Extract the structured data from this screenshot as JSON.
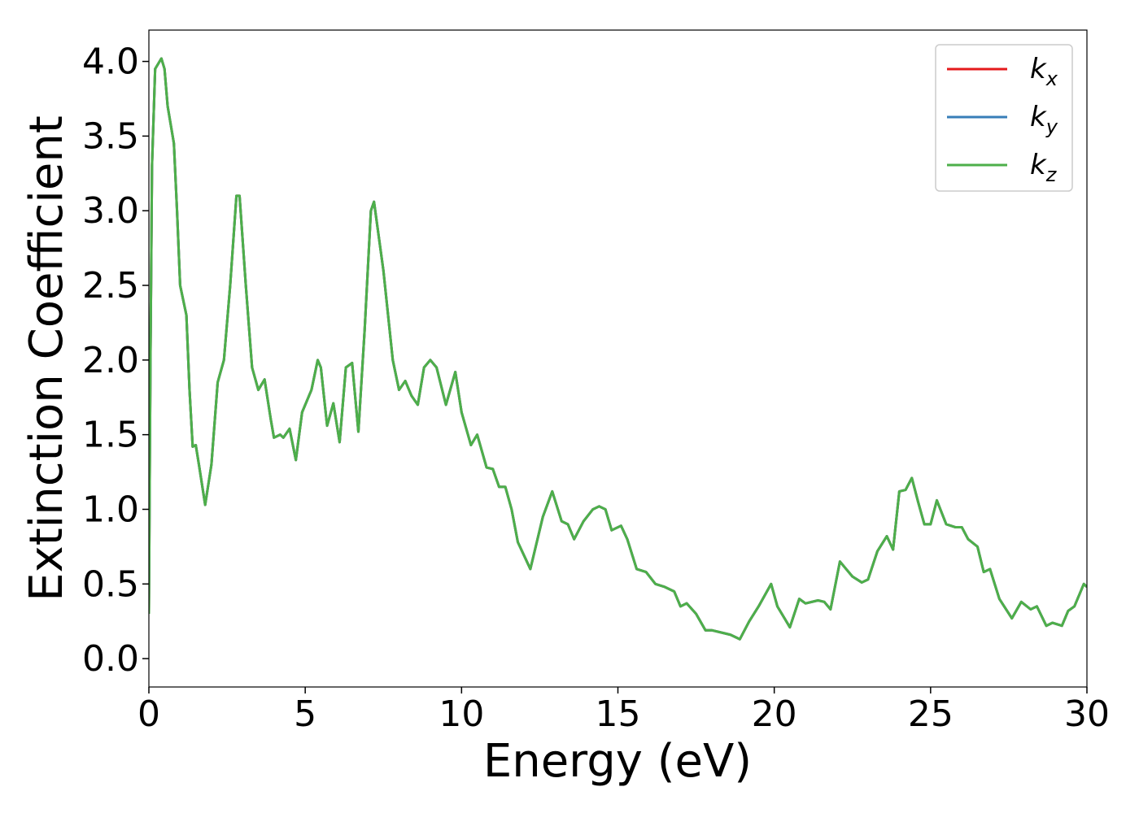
{
  "chart_data": {
    "type": "line",
    "xlabel": "Energy (eV)",
    "ylabel": "Extinction Coefficient",
    "xlim": [
      0,
      30
    ],
    "xticks": [
      0,
      5,
      10,
      15,
      20,
      25,
      30
    ],
    "ylim": [
      -0.19,
      4.21
    ],
    "yticks": [
      {
        "value": 0,
        "label": "0.0"
      },
      0.5,
      {
        "value": 1,
        "label": "1.0"
      },
      1.5,
      {
        "value": 2,
        "label": "2.0"
      },
      2.5,
      {
        "value": 3,
        "label": "3.0"
      },
      3.5,
      {
        "value": 4,
        "label": "4.0"
      }
    ],
    "legend": "upper right",
    "grid": false,
    "x": [
      0,
      0.05,
      0.1,
      0.2,
      0.4,
      0.5,
      0.6,
      0.8,
      0.9,
      1.0,
      1.2,
      1.3,
      1.4,
      1.5,
      1.6,
      1.8,
      2.0,
      2.2,
      2.4,
      2.6,
      2.8,
      2.9,
      3.1,
      3.3,
      3.5,
      3.7,
      3.9,
      4.0,
      4.2,
      4.3,
      4.5,
      4.7,
      4.9,
      5.2,
      5.4,
      5.5,
      5.7,
      5.9,
      6.1,
      6.3,
      6.5,
      6.7,
      6.9,
      7.1,
      7.2,
      7.5,
      7.8,
      8.0,
      8.2,
      8.4,
      8.6,
      8.8,
      9.0,
      9.2,
      9.5,
      9.8,
      10.0,
      10.3,
      10.5,
      10.8,
      11.0,
      11.2,
      11.4,
      11.6,
      11.8,
      12.2,
      12.6,
      12.9,
      13.2,
      13.4,
      13.6,
      13.9,
      14.2,
      14.4,
      14.6,
      14.8,
      15.1,
      15.3,
      15.6,
      15.9,
      16.2,
      16.5,
      16.8,
      17.0,
      17.2,
      17.5,
      17.8,
      18.0,
      18.4,
      18.6,
      18.9,
      19.2,
      19.5,
      19.9,
      20.1,
      20.5,
      20.8,
      21.0,
      21.4,
      21.6,
      21.8,
      22.1,
      22.3,
      22.5,
      22.8,
      23.0,
      23.3,
      23.6,
      23.8,
      24.0,
      24.2,
      24.4,
      24.6,
      24.8,
      25.0,
      25.2,
      25.5,
      25.8,
      26.0,
      26.2,
      26.5,
      26.7,
      26.9,
      27.2,
      27.6,
      27.9,
      28.2,
      28.4,
      28.7,
      28.9,
      29.2,
      29.4,
      29.6,
      29.9,
      30.0
    ],
    "series": [
      {
        "name": "kx",
        "color": "#e41a1c",
        "values": [
          0.3,
          2.0,
          3.3,
          3.95,
          4.02,
          3.95,
          3.7,
          3.45,
          3.0,
          2.5,
          2.3,
          1.8,
          1.42,
          1.43,
          1.3,
          1.03,
          1.3,
          1.85,
          2.0,
          2.5,
          3.1,
          3.1,
          2.5,
          1.95,
          1.8,
          1.87,
          1.6,
          1.48,
          1.5,
          1.48,
          1.54,
          1.33,
          1.65,
          1.8,
          2.0,
          1.95,
          1.56,
          1.71,
          1.45,
          1.95,
          1.98,
          1.52,
          2.2,
          3.0,
          3.06,
          2.6,
          2.0,
          1.8,
          1.86,
          1.76,
          1.7,
          1.95,
          2.0,
          1.95,
          1.7,
          1.92,
          1.65,
          1.43,
          1.5,
          1.28,
          1.27,
          1.15,
          1.15,
          1.0,
          0.78,
          0.6,
          0.95,
          1.12,
          0.92,
          0.9,
          0.8,
          0.92,
          1.0,
          1.02,
          1.0,
          0.86,
          0.89,
          0.8,
          0.6,
          0.58,
          0.5,
          0.48,
          0.45,
          0.35,
          0.37,
          0.3,
          0.19,
          0.19,
          0.17,
          0.16,
          0.13,
          0.25,
          0.35,
          0.5,
          0.35,
          0.21,
          0.4,
          0.37,
          0.39,
          0.38,
          0.33,
          0.65,
          0.6,
          0.55,
          0.51,
          0.53,
          0.72,
          0.82,
          0.73,
          1.12,
          1.13,
          1.21,
          1.05,
          0.9,
          0.9,
          1.06,
          0.9,
          0.88,
          0.88,
          0.8,
          0.75,
          0.58,
          0.6,
          0.4,
          0.27,
          0.38,
          0.33,
          0.35,
          0.22,
          0.24,
          0.22,
          0.32,
          0.35,
          0.5,
          0.48
        ]
      },
      {
        "name": "ky",
        "color": "#377eb8",
        "values": [
          0.3,
          2.0,
          3.3,
          3.95,
          4.02,
          3.95,
          3.7,
          3.45,
          3.0,
          2.5,
          2.3,
          1.8,
          1.42,
          1.43,
          1.3,
          1.03,
          1.3,
          1.85,
          2.0,
          2.5,
          3.1,
          3.1,
          2.5,
          1.95,
          1.8,
          1.87,
          1.6,
          1.48,
          1.5,
          1.48,
          1.54,
          1.33,
          1.65,
          1.8,
          2.0,
          1.95,
          1.56,
          1.71,
          1.45,
          1.95,
          1.98,
          1.52,
          2.2,
          3.0,
          3.06,
          2.6,
          2.0,
          1.8,
          1.86,
          1.76,
          1.7,
          1.95,
          2.0,
          1.95,
          1.7,
          1.92,
          1.65,
          1.43,
          1.5,
          1.28,
          1.27,
          1.15,
          1.15,
          1.0,
          0.78,
          0.6,
          0.95,
          1.12,
          0.92,
          0.9,
          0.8,
          0.92,
          1.0,
          1.02,
          1.0,
          0.86,
          0.89,
          0.8,
          0.6,
          0.58,
          0.5,
          0.48,
          0.45,
          0.35,
          0.37,
          0.3,
          0.19,
          0.19,
          0.17,
          0.16,
          0.13,
          0.25,
          0.35,
          0.5,
          0.35,
          0.21,
          0.4,
          0.37,
          0.39,
          0.38,
          0.33,
          0.65,
          0.6,
          0.55,
          0.51,
          0.53,
          0.72,
          0.82,
          0.73,
          1.12,
          1.13,
          1.21,
          1.05,
          0.9,
          0.9,
          1.06,
          0.9,
          0.88,
          0.88,
          0.8,
          0.75,
          0.58,
          0.6,
          0.4,
          0.27,
          0.38,
          0.33,
          0.35,
          0.22,
          0.24,
          0.22,
          0.32,
          0.35,
          0.5,
          0.48
        ]
      },
      {
        "name": "kz",
        "color": "#4daf4a",
        "values": [
          0.3,
          2.0,
          3.3,
          3.95,
          4.02,
          3.95,
          3.7,
          3.45,
          3.0,
          2.5,
          2.3,
          1.8,
          1.42,
          1.43,
          1.3,
          1.03,
          1.3,
          1.85,
          2.0,
          2.5,
          3.1,
          3.1,
          2.5,
          1.95,
          1.8,
          1.87,
          1.6,
          1.48,
          1.5,
          1.48,
          1.54,
          1.33,
          1.65,
          1.8,
          2.0,
          1.95,
          1.56,
          1.71,
          1.45,
          1.95,
          1.98,
          1.52,
          2.2,
          3.0,
          3.06,
          2.6,
          2.0,
          1.8,
          1.86,
          1.76,
          1.7,
          1.95,
          2.0,
          1.95,
          1.7,
          1.92,
          1.65,
          1.43,
          1.5,
          1.28,
          1.27,
          1.15,
          1.15,
          1.0,
          0.78,
          0.6,
          0.95,
          1.12,
          0.92,
          0.9,
          0.8,
          0.92,
          1.0,
          1.02,
          1.0,
          0.86,
          0.89,
          0.8,
          0.6,
          0.58,
          0.5,
          0.48,
          0.45,
          0.35,
          0.37,
          0.3,
          0.19,
          0.19,
          0.17,
          0.16,
          0.13,
          0.25,
          0.35,
          0.5,
          0.35,
          0.21,
          0.4,
          0.37,
          0.39,
          0.38,
          0.33,
          0.65,
          0.6,
          0.55,
          0.51,
          0.53,
          0.72,
          0.82,
          0.73,
          1.12,
          1.13,
          1.21,
          1.05,
          0.9,
          0.9,
          1.06,
          0.9,
          0.88,
          0.88,
          0.8,
          0.75,
          0.58,
          0.6,
          0.4,
          0.27,
          0.38,
          0.33,
          0.35,
          0.22,
          0.24,
          0.22,
          0.32,
          0.35,
          0.5,
          0.48
        ]
      }
    ]
  }
}
